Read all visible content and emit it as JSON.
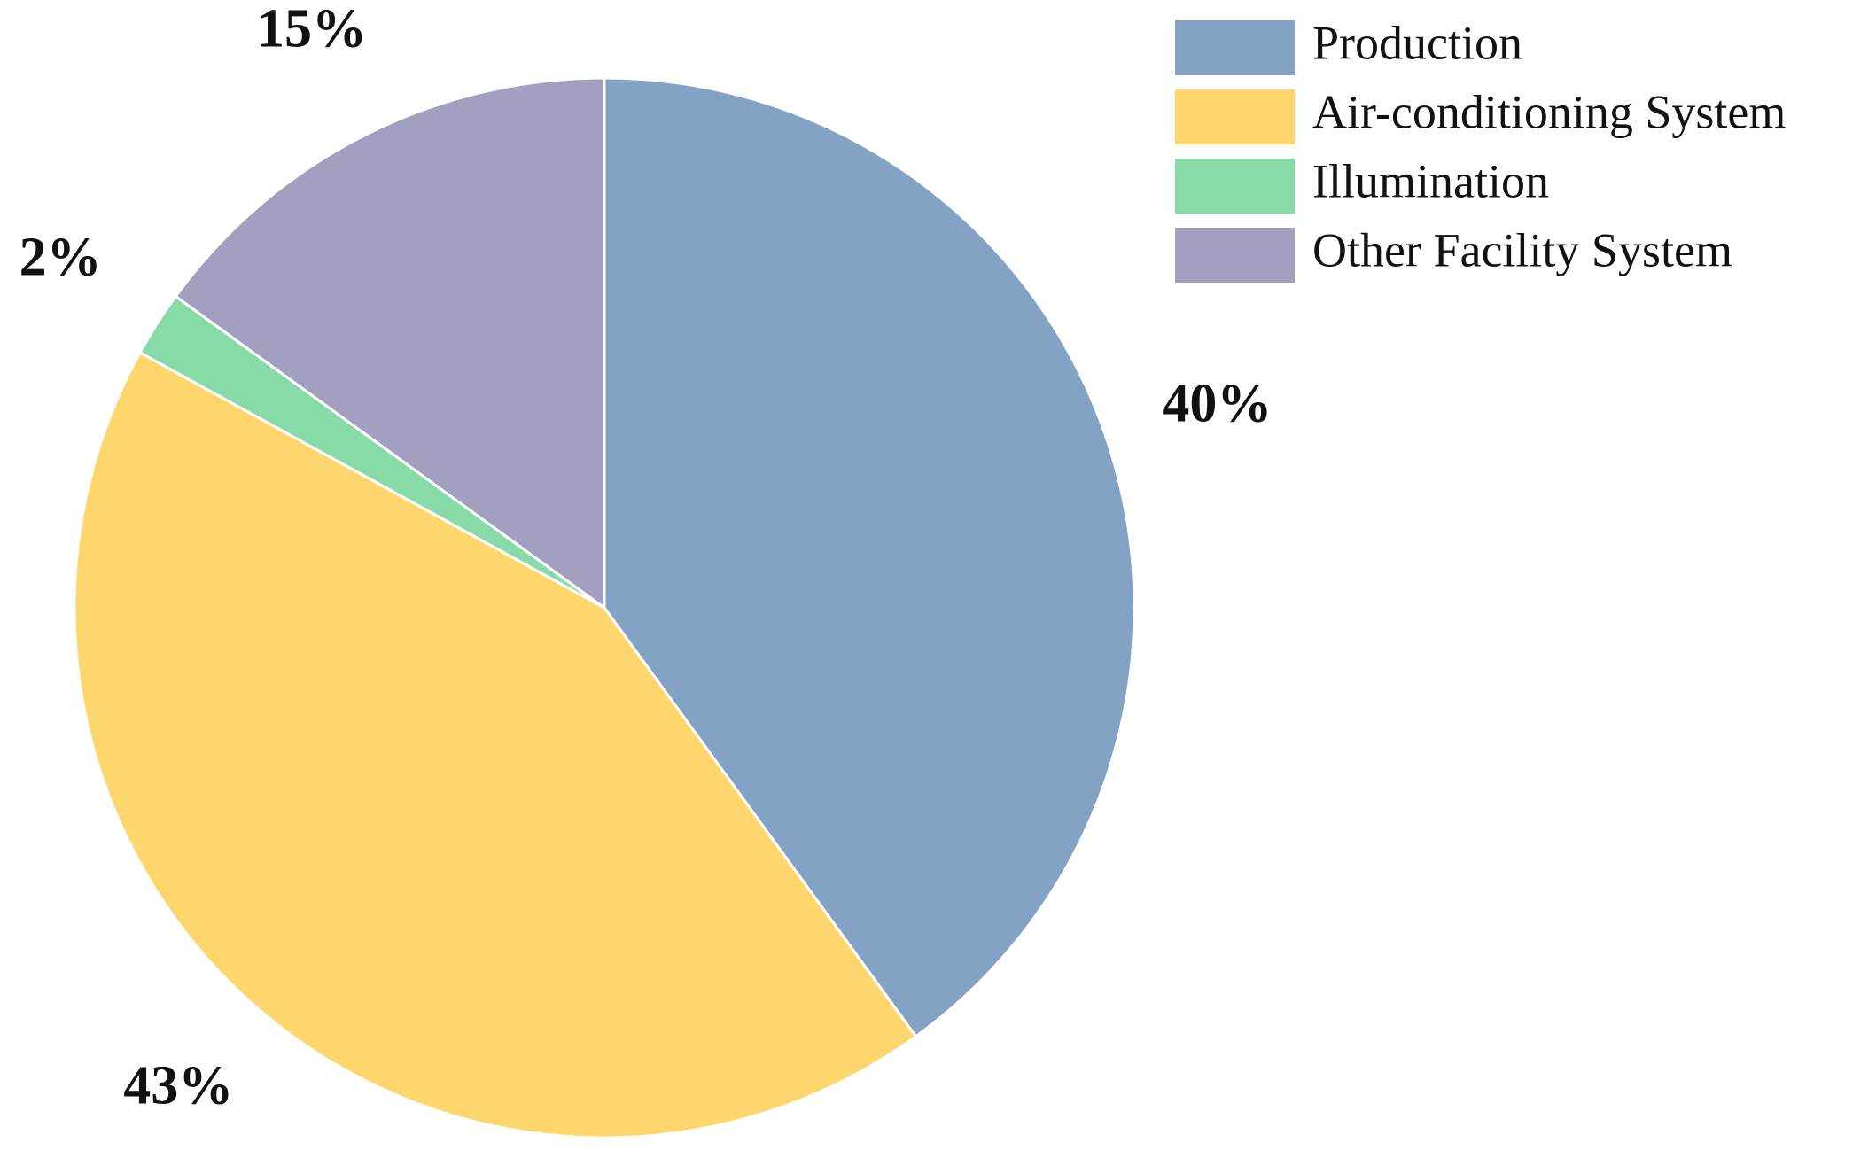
{
  "chart_data": {
    "type": "pie",
    "categories": [
      "Production",
      "Air-conditioning System",
      "Illumination",
      "Other Facility System"
    ],
    "values": [
      40,
      43,
      2,
      15
    ],
    "value_labels": [
      "40%",
      "43%",
      "2%",
      "15%"
    ],
    "colors": [
      "#84a3c4",
      "#fdd76e",
      "#88dba8",
      "#a2a0c0"
    ],
    "legend": "upper right"
  }
}
